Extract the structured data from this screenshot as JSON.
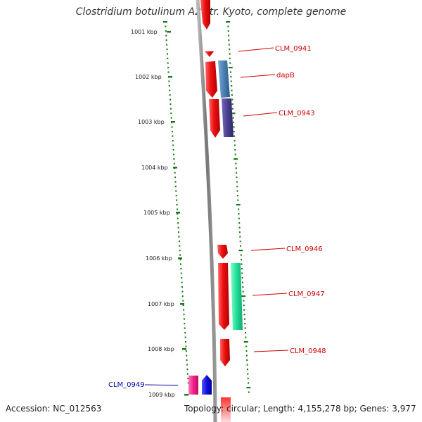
{
  "title": "Clostridium botulinum A2 str. Kyoto, complete genome",
  "accession_text": "Accession: NC_012563",
  "topology_text": "Topology: circular; Length: 4,155,278 bp; Genes: 3,977",
  "ticks": [
    "1001 kbp",
    "1002 kbp",
    "1003 kbp",
    "1004 kbp",
    "1005 kbp",
    "1006 kbp",
    "1007 kbp",
    "1008 kbp",
    "1009 kbp"
  ],
  "gene_labels": [
    "CLM_0941",
    "dapB",
    "CLM_0943",
    "CLM_0946",
    "CLM_0947",
    "CLM_0948",
    "CLM_0949"
  ],
  "colors": {
    "forward_label": "#cc0000",
    "reverse_label": "#0000aa",
    "backbone": "#888888",
    "dots": "#1a7a1a",
    "gene_red": "#ee1111",
    "gene_steelblue": "#4a7fb0",
    "gene_purple": "#4a3f8f",
    "gene_teal": "#22dd99",
    "gene_pink": "#ee2288",
    "gene_blue": "#1111dd"
  }
}
